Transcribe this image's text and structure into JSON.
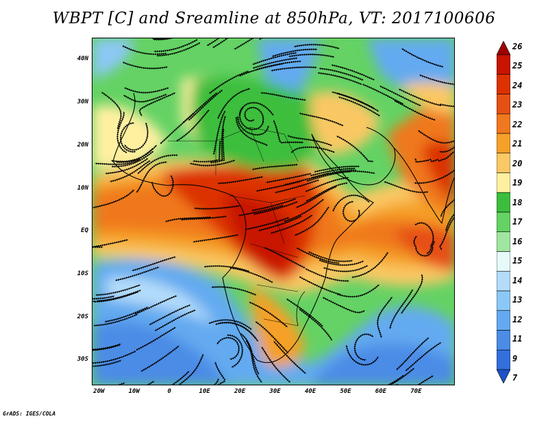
{
  "title": "WBPT [C] and Sreamline at 850hPa, VT: 2017100606",
  "credit": "GrADS: IGES/COLA",
  "map": {
    "lon_range": [
      -22,
      81
    ],
    "lat_range": [
      -36,
      45
    ],
    "lat_ticks": [
      {
        "value": 40,
        "label": "40N"
      },
      {
        "value": 30,
        "label": "30N"
      },
      {
        "value": 20,
        "label": "20N"
      },
      {
        "value": 10,
        "label": "10N"
      },
      {
        "value": 0,
        "label": "EQ"
      },
      {
        "value": -10,
        "label": "10S"
      },
      {
        "value": -20,
        "label": "20S"
      },
      {
        "value": -30,
        "label": "30S"
      }
    ],
    "lon_ticks": [
      {
        "value": -20,
        "label": "20W"
      },
      {
        "value": -10,
        "label": "10W"
      },
      {
        "value": 0,
        "label": "0"
      },
      {
        "value": 10,
        "label": "10E"
      },
      {
        "value": 20,
        "label": "20E"
      },
      {
        "value": 30,
        "label": "30E"
      },
      {
        "value": 40,
        "label": "40E"
      },
      {
        "value": 50,
        "label": "50E"
      },
      {
        "value": 60,
        "label": "60E"
      },
      {
        "value": 70,
        "label": "70E"
      }
    ]
  },
  "colorbar": {
    "levels": [
      "26",
      "25",
      "24",
      "23",
      "22",
      "21",
      "20",
      "19",
      "18",
      "17",
      "16",
      "15",
      "14",
      "13",
      "12",
      "11",
      "9",
      "7"
    ],
    "colors": [
      "#9e0000",
      "#c81400",
      "#dc3200",
      "#e65014",
      "#f0781e",
      "#f5a028",
      "#fac864",
      "#fff0a0",
      "#3cbe3c",
      "#64d264",
      "#a0e6a0",
      "#e6fafa",
      "#b4dcfa",
      "#8cc8f5",
      "#64aaf0",
      "#4b8ce6",
      "#3270dc",
      "#1e50c8"
    ]
  }
}
